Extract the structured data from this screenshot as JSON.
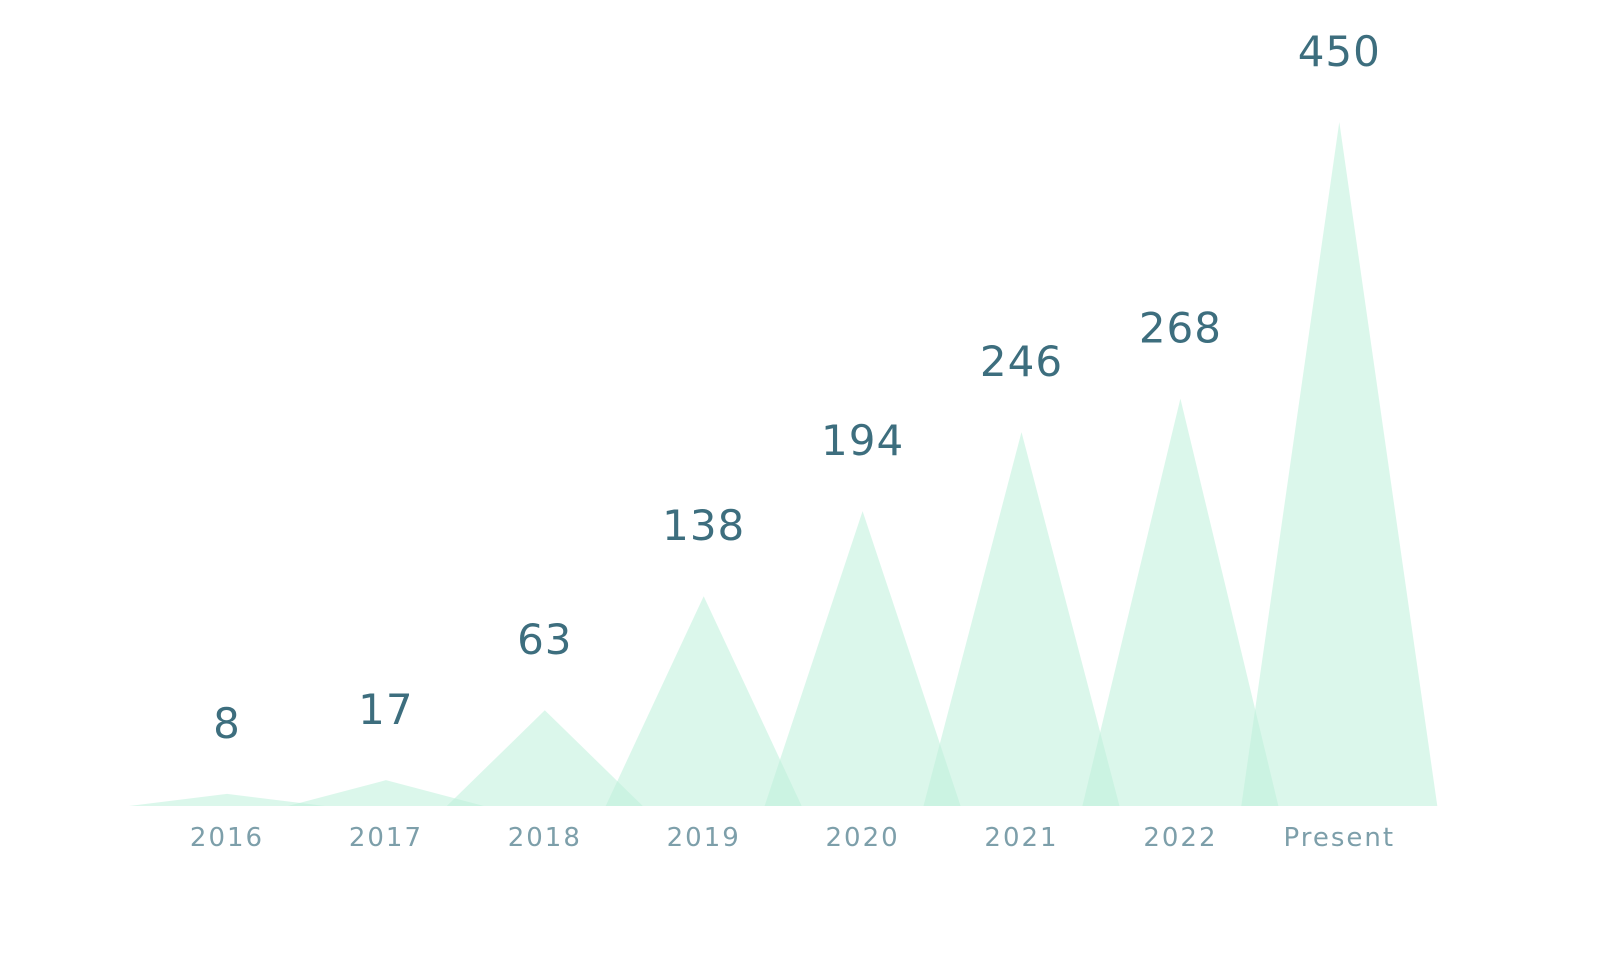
{
  "chart_data": {
    "type": "triangle-bar",
    "categories": [
      "2016",
      "2017",
      "2018",
      "2019",
      "2020",
      "2021",
      "2022",
      "Present"
    ],
    "values": [
      8,
      17,
      63,
      138,
      194,
      246,
      268,
      450
    ],
    "color": "#bdf0da",
    "ylim": [
      0,
      500
    ]
  }
}
